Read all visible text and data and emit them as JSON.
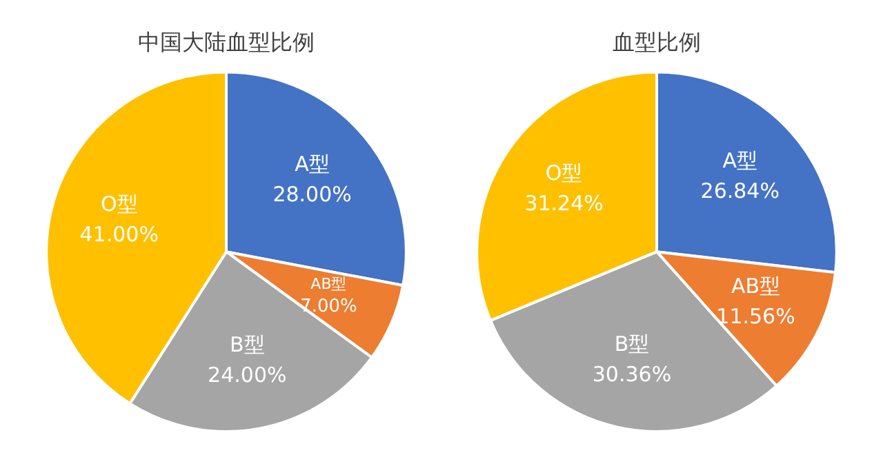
{
  "chart_data": [
    {
      "type": "pie",
      "title": "中国大陆血型比例",
      "categories": [
        "A型",
        "AB型",
        "B型",
        "O型"
      ],
      "values": [
        28,
        7,
        24,
        41
      ],
      "colors": [
        "#4472c4",
        "#ed7d31",
        "#a5a5a5",
        "#ffc000"
      ],
      "value_labels": [
        "28.00%",
        "7.00%",
        "24.00%",
        "41.00%"
      ]
    },
    {
      "type": "pie",
      "title": "血型比例",
      "categories": [
        "A型",
        "AB型",
        "B型",
        "O型"
      ],
      "values": [
        26.84,
        11.56,
        30.36,
        31.24
      ],
      "colors": [
        "#4472c4",
        "#ed7d31",
        "#a5a5a5",
        "#ffc000"
      ],
      "value_labels": [
        "26.84%",
        "11.56%",
        "30.36%",
        "31.24%"
      ]
    }
  ]
}
